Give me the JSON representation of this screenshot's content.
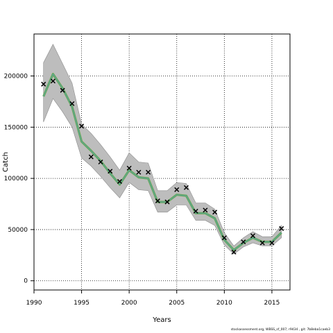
{
  "chart_data": {
    "type": "line",
    "title": "",
    "xlabel": "Years",
    "ylabel": "Catch",
    "xlim": [
      1990,
      2016.9
    ],
    "ylim": [
      -9000,
      241000
    ],
    "x_ticks": [
      1990,
      1995,
      2000,
      2005,
      2010,
      2015
    ],
    "y_ticks": [
      0,
      50000,
      100000,
      150000,
      200000
    ],
    "grid": true,
    "series": [
      {
        "style": "fitted-line",
        "color_main": "#6aa84f",
        "color_overlay": "#4aa3df",
        "x": [
          1991,
          1992,
          1993,
          1994,
          1995,
          1996,
          1997,
          1998,
          1999,
          2000,
          2001,
          2002,
          2003,
          2004,
          2005,
          2006,
          2007,
          2008,
          2009,
          2010,
          2011,
          2012,
          2013,
          2014,
          2015,
          2016
        ],
        "y": [
          180000,
          202000,
          188000,
          170000,
          136000,
          127000,
          117000,
          105000,
          94000,
          108000,
          101000,
          100000,
          77000,
          77000,
          84000,
          83000,
          66000,
          66000,
          61000,
          40000,
          30000,
          37000,
          42000,
          38000,
          38000,
          47000
        ],
        "lower": [
          155000,
          178000,
          165000,
          150000,
          120000,
          112000,
          102000,
          91000,
          81000,
          96000,
          89000,
          88000,
          67000,
          67000,
          74000,
          74000,
          59000,
          59000,
          54000,
          35000,
          26000,
          33000,
          37000,
          34000,
          34000,
          42000
        ],
        "upper": [
          213000,
          231000,
          212000,
          193000,
          153000,
          144000,
          133000,
          121000,
          108000,
          125000,
          116000,
          115000,
          88000,
          88000,
          96000,
          95000,
          76000,
          76000,
          70000,
          47000,
          34000,
          42000,
          48000,
          43000,
          43000,
          54000
        ]
      },
      {
        "style": "observed-crosses",
        "color_main": "#000000",
        "x": [
          1991,
          1992,
          1993,
          1994,
          1995,
          1996,
          1997,
          1998,
          1999,
          2000,
          2001,
          2002,
          2003,
          2004,
          2005,
          2006,
          2007,
          2008,
          2009,
          2010,
          2011,
          2012,
          2013,
          2014,
          2015,
          2016
        ],
        "y": [
          192000,
          195000,
          186000,
          173000,
          151000,
          121000,
          116000,
          107000,
          97000,
          110000,
          106000,
          106000,
          78000,
          77000,
          89000,
          91000,
          68000,
          69000,
          67000,
          42000,
          28000,
          38000,
          44000,
          37000,
          37000,
          51000
        ]
      }
    ]
  },
  "footer_text": "stockassessment.org, WBSS_sf_007, r9434 , git: 7b8eba1caeb3"
}
